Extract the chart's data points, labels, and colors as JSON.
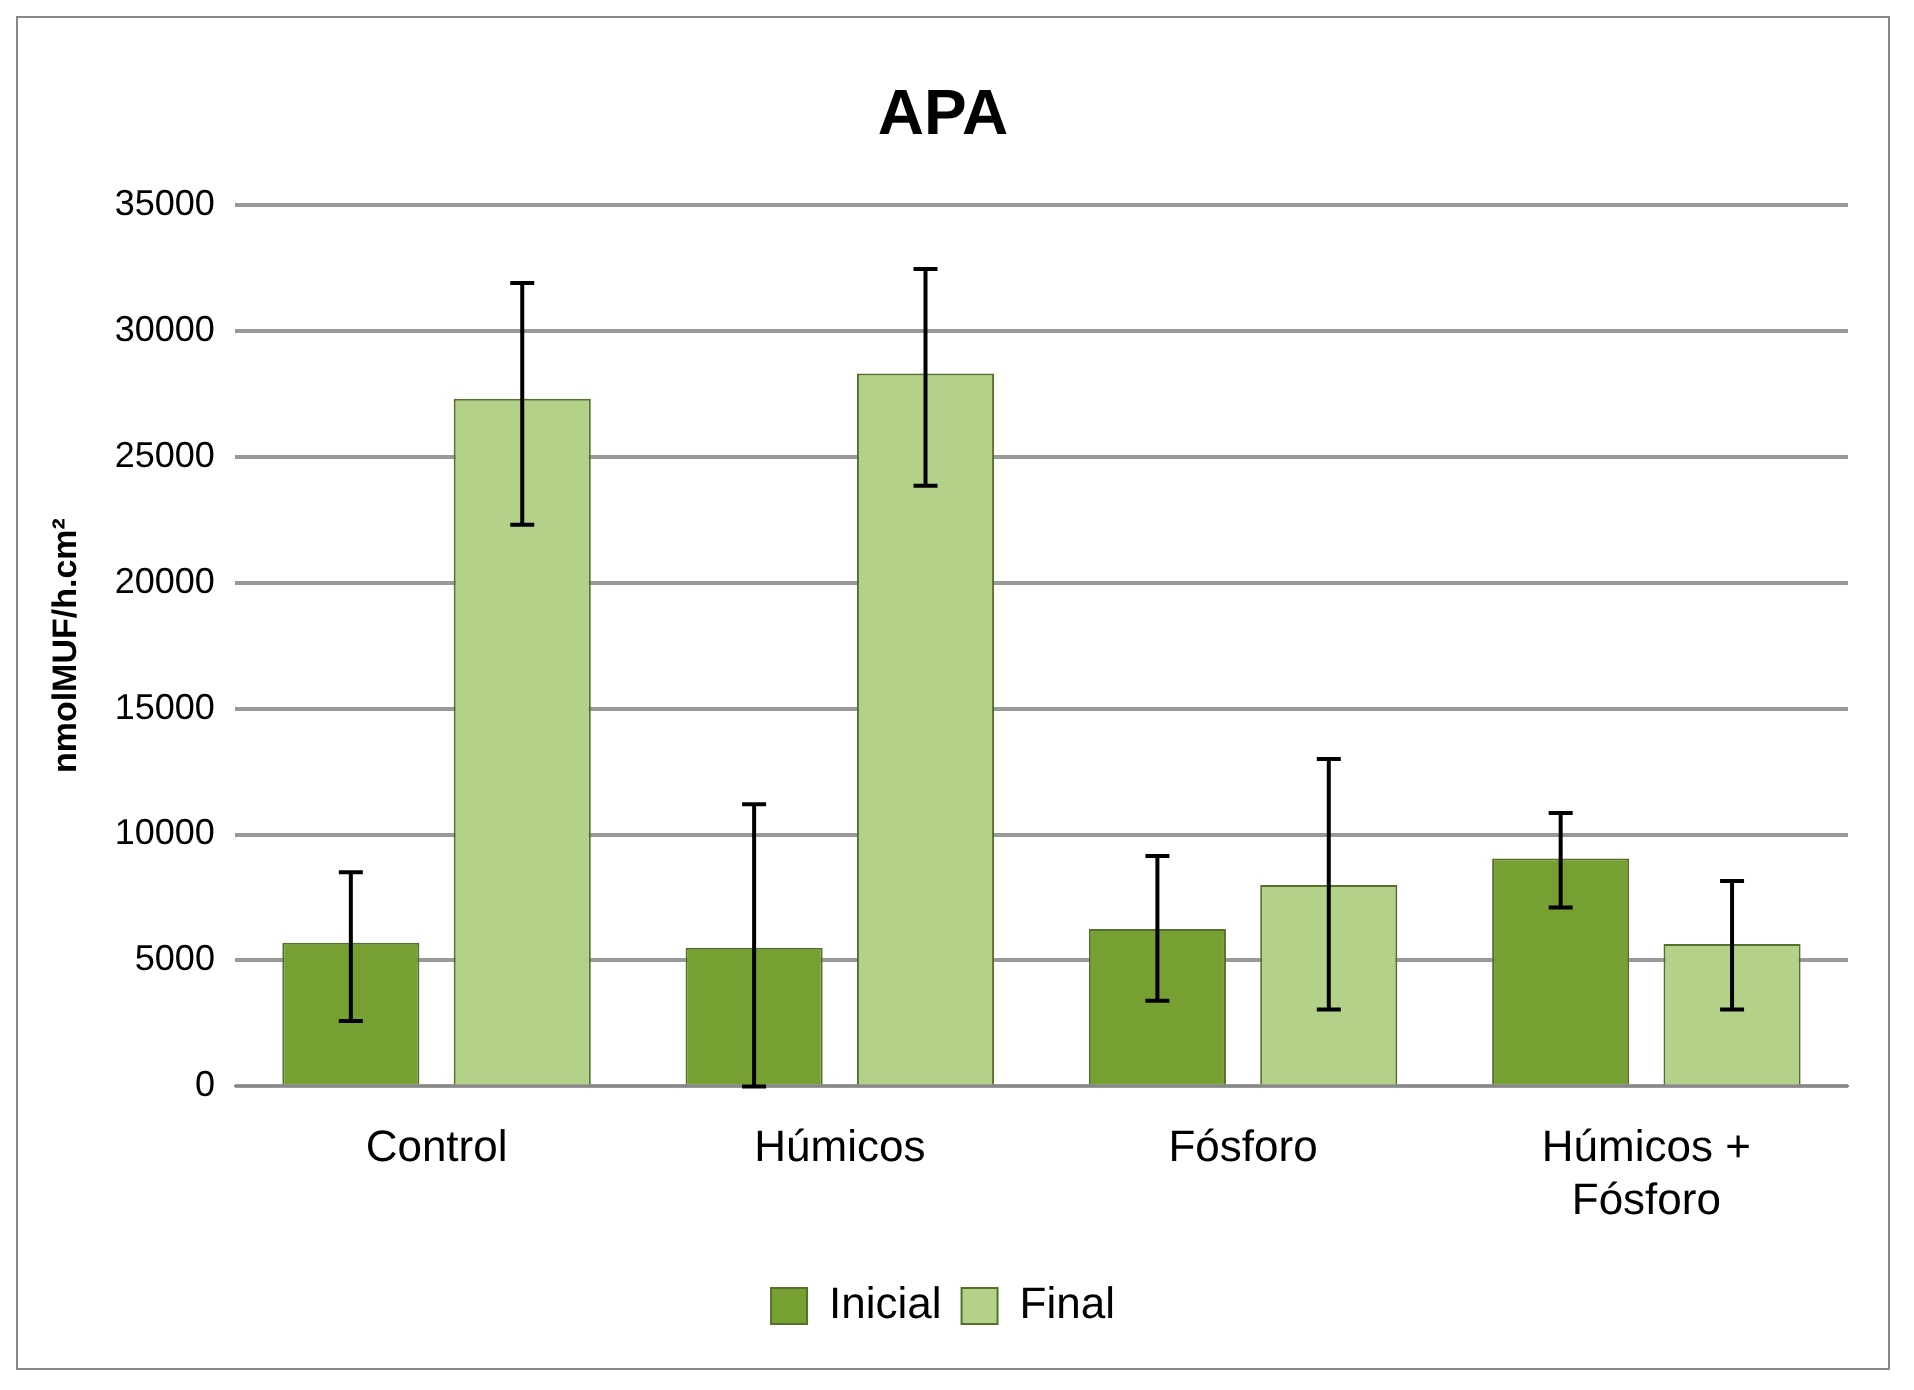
{
  "chart_data": {
    "type": "bar",
    "title": "APA",
    "ylabel": "nmolMUF/h.cm²",
    "categories": [
      "Control",
      "Húmicos",
      "Fósforo",
      "Húmicos + Fósforo"
    ],
    "series": [
      {
        "name": "Inicial",
        "color": "#77a033",
        "values": [
          5700,
          5500,
          6250,
          9050
        ],
        "errors": [
          [
            2600,
            8500
          ],
          [
            0,
            11200
          ],
          [
            3400,
            9150
          ],
          [
            7100,
            10850
          ]
        ]
      },
      {
        "name": "Final",
        "color": "#b4d18a",
        "values": [
          27300,
          28300,
          8000,
          5650
        ],
        "errors": [
          [
            22300,
            31900
          ],
          [
            23850,
            32450
          ],
          [
            3050,
            13000
          ],
          [
            3050,
            8150
          ]
        ]
      }
    ],
    "ylim": [
      0,
      35000
    ],
    "yticks": [
      0,
      5000,
      10000,
      15000,
      20000,
      25000,
      30000,
      35000
    ],
    "grid": "y",
    "legend": "bottom"
  }
}
